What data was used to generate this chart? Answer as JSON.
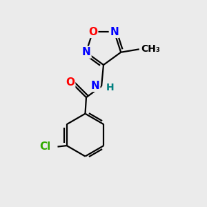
{
  "bg_color": "#ebebeb",
  "bond_color": "#000000",
  "N_color": "#0000ff",
  "O_color": "#ff0000",
  "Cl_color": "#33aa00",
  "H_color": "#008080",
  "line_width": 1.6,
  "font_size": 11,
  "figsize": [
    3.0,
    3.0
  ],
  "dpi": 100,
  "xlim": [
    0,
    10
  ],
  "ylim": [
    0,
    10
  ]
}
